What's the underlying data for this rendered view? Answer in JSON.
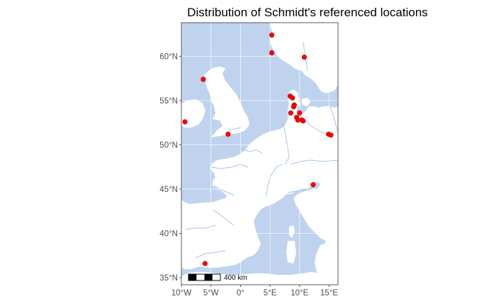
{
  "title": "Distribution of Schmidt's referenced locations",
  "colors": {
    "sea": "#bfd3ee",
    "land": "#ffffff",
    "river": "#a7c3e6",
    "grid": "#ffffff",
    "point": "#ff0000",
    "point_edge": "#b00000",
    "frame": "#333333"
  },
  "map": {
    "lon_range": [
      -10,
      16.5
    ],
    "lat_range": [
      34.2,
      63.8
    ],
    "x_ticks": [
      {
        "value": -10,
        "label": "10°W"
      },
      {
        "value": -5,
        "label": "5°W"
      },
      {
        "value": 0,
        "label": "0°"
      },
      {
        "value": 5,
        "label": "5°E"
      },
      {
        "value": 10,
        "label": "10°E"
      },
      {
        "value": 15,
        "label": "15°E"
      }
    ],
    "y_ticks": [
      {
        "value": 35,
        "label": "35°N"
      },
      {
        "value": 40,
        "label": "40°N"
      },
      {
        "value": 45,
        "label": "45°N"
      },
      {
        "value": 50,
        "label": "50°N"
      },
      {
        "value": 55,
        "label": "55°N"
      },
      {
        "value": 60,
        "label": "60°N"
      }
    ],
    "scale_bar_label": "400 km"
  },
  "chart_data": {
    "type": "scatter",
    "title": "Distribution of Schmidt's referenced locations",
    "xlabel": "",
    "ylabel": "",
    "grid": true,
    "points": [
      {
        "lon": 5.3,
        "lat": 62.4
      },
      {
        "lon": 5.3,
        "lat": 60.4
      },
      {
        "lon": 10.8,
        "lat": 59.9
      },
      {
        "lon": -6.3,
        "lat": 57.4
      },
      {
        "lon": -9.4,
        "lat": 52.6
      },
      {
        "lon": -2.1,
        "lat": 51.2
      },
      {
        "lon": 8.4,
        "lat": 55.5
      },
      {
        "lon": 8.8,
        "lat": 55.3
      },
      {
        "lon": 9.1,
        "lat": 54.5
      },
      {
        "lon": 9.0,
        "lat": 54.3
      },
      {
        "lon": 8.5,
        "lat": 53.6
      },
      {
        "lon": 10.0,
        "lat": 53.6
      },
      {
        "lon": 9.5,
        "lat": 53.1
      },
      {
        "lon": 9.7,
        "lat": 52.8
      },
      {
        "lon": 10.4,
        "lat": 52.8
      },
      {
        "lon": 10.6,
        "lat": 52.7
      },
      {
        "lon": 14.9,
        "lat": 51.2
      },
      {
        "lon": 15.3,
        "lat": 51.1
      },
      {
        "lon": 12.3,
        "lat": 45.5
      },
      {
        "lon": -6.0,
        "lat": 36.6
      }
    ]
  }
}
